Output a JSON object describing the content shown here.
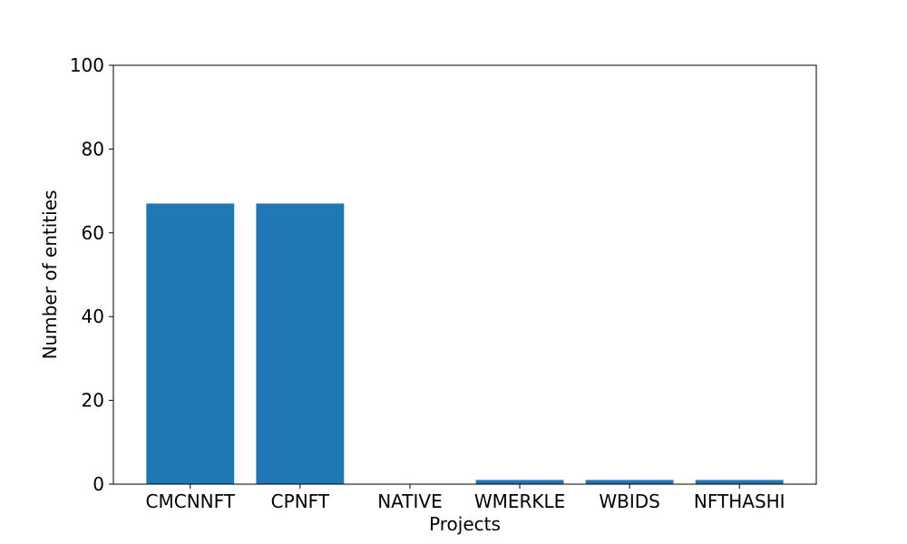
{
  "chart_data": {
    "type": "bar",
    "title": "",
    "xlabel": "Projects",
    "ylabel": "Number of entities",
    "categories": [
      "CMCNNFT",
      "CPNFT",
      "NATIVE",
      "WMERKLE",
      "WBIDS",
      "NFTHASHI"
    ],
    "values": [
      67,
      67,
      0,
      1,
      1,
      1
    ],
    "ylim": [
      0,
      100
    ],
    "yticks": [
      0,
      20,
      40,
      60,
      80,
      100
    ],
    "grid": false,
    "bar_color": "#1f77b4"
  }
}
